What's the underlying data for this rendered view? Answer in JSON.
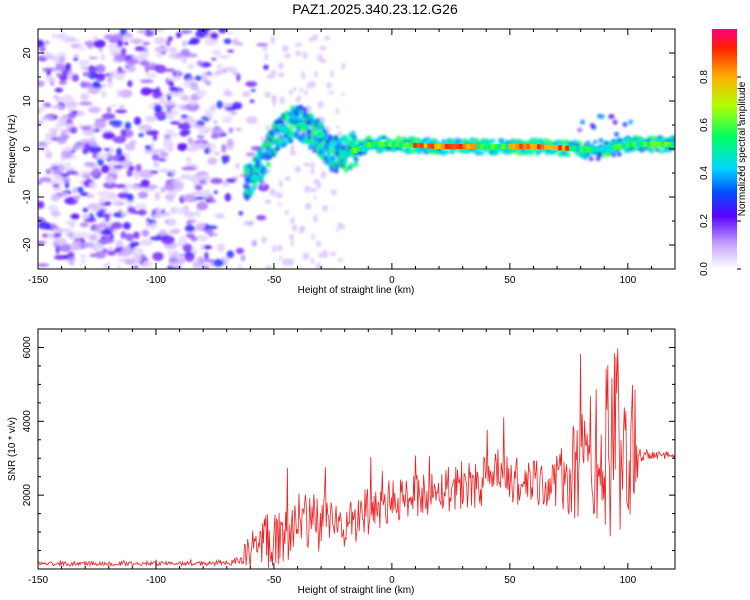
{
  "title": "PAZ1.2025.340.23.12.G26",
  "chart_data": [
    {
      "type": "heatmap",
      "name": "spectrogram",
      "xlabel": "Height of straight line (km)",
      "ylabel": "Frequency (Hz)",
      "xlim": [
        -150,
        120
      ],
      "ylim": [
        -25,
        25
      ],
      "xticks": [
        -150,
        -100,
        -50,
        0,
        50,
        100
      ],
      "yticks": [
        -20,
        -10,
        0,
        10,
        20
      ],
      "colorbar": {
        "label": "Normalized spectral amplitude",
        "range": [
          0,
          1
        ],
        "ticks": [
          "0.0",
          "0.2",
          "0.4",
          "0.6",
          "0.8"
        ]
      },
      "ridge": {
        "description_points_height_km": [
          -60,
          -55,
          -50,
          -45,
          -40,
          -35,
          -30,
          -25,
          -20,
          -10,
          0,
          20,
          40,
          60,
          80,
          90,
          100,
          110,
          120
        ],
        "frequency_hz": [
          -6,
          -3,
          2,
          4,
          6,
          4,
          2,
          -1,
          -1,
          1,
          1,
          0.5,
          0.5,
          0.5,
          0,
          0,
          1,
          1,
          1
        ]
      },
      "noise_region_km": [
        -150,
        -55
      ]
    },
    {
      "type": "line",
      "name": "snr",
      "xlabel": "Height of straight line (km)",
      "ylabel": "SNR (10 * v/v)",
      "xlim": [
        -150,
        120
      ],
      "ylim": [
        0,
        6500
      ],
      "xticks": [
        -150,
        -100,
        -50,
        0,
        50,
        100
      ],
      "yticks": [
        2000,
        4000,
        6000
      ],
      "color": "#ee2222",
      "series": [
        {
          "name": "SNR",
          "x": [
            -150,
            -140,
            -130,
            -120,
            -110,
            -100,
            -90,
            -80,
            -70,
            -65,
            -60,
            -55,
            -50,
            -45,
            -40,
            -35,
            -30,
            -25,
            -20,
            -15,
            -10,
            -5,
            0,
            5,
            10,
            15,
            20,
            25,
            30,
            35,
            40,
            45,
            50,
            55,
            60,
            65,
            70,
            75,
            80,
            85,
            90,
            95,
            100,
            103,
            105,
            110,
            115,
            120
          ],
          "values": [
            150,
            140,
            150,
            150,
            145,
            150,
            150,
            140,
            180,
            220,
            500,
            700,
            900,
            1050,
            1150,
            1200,
            1300,
            1250,
            1150,
            1300,
            1500,
            1700,
            1800,
            1900,
            2000,
            2050,
            2150,
            2250,
            2300,
            2350,
            2400,
            2450,
            2450,
            2300,
            2250,
            2300,
            2350,
            2500,
            2700,
            2900,
            3100,
            3300,
            3400,
            3500,
            3100,
            3100,
            3100,
            3100
          ],
          "noise_amplitude": [
            60,
            60,
            60,
            60,
            60,
            60,
            60,
            60,
            80,
            120,
            500,
            900,
            1000,
            900,
            900,
            1000,
            900,
            700,
            600,
            700,
            700,
            700,
            600,
            600,
            600,
            600,
            600,
            700,
            700,
            700,
            700,
            800,
            800,
            600,
            700,
            700,
            800,
            1200,
            1600,
            2200,
            2600,
            2600,
            2500,
            2000,
            200,
            120,
            120,
            120
          ]
        }
      ]
    }
  ]
}
